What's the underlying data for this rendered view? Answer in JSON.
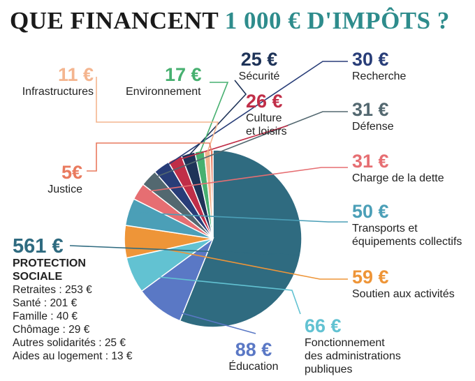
{
  "title": {
    "part1": "QUE FINANCENT",
    "part2": "1 000 € D'IMPÔTS ?"
  },
  "chart_data": {
    "type": "pie",
    "total": 1000,
    "unit": "€",
    "slices": [
      {
        "amount": "561 €",
        "name": "PROTECTION SOCIALE",
        "value": 561,
        "color": "#2f6b80"
      },
      {
        "amount": "88 €",
        "name": "Éducation",
        "value": 88,
        "color": "#5a78c5"
      },
      {
        "amount": "66 €",
        "name": "Fonctionnement des administrations publiques",
        "value": 66,
        "color": "#62c2d2"
      },
      {
        "amount": "59 €",
        "name": "Soutien aux activités",
        "value": 59,
        "color": "#ee9538"
      },
      {
        "amount": "50 €",
        "name": "Transports et équipements collectifs",
        "value": 50,
        "color": "#4b9fb7"
      },
      {
        "amount": "31 €",
        "name": "Charge de la dette",
        "value": 31,
        "color": "#e66e72"
      },
      {
        "amount": "31 €",
        "name": "Défense",
        "value": 31,
        "color": "#536870"
      },
      {
        "amount": "30 €",
        "name": "Recherche",
        "value": 30,
        "color": "#283d78"
      },
      {
        "amount": "26 €",
        "name": "Culture et loisirs",
        "value": 26,
        "color": "#c02e48"
      },
      {
        "amount": "25 €",
        "name": "Sécurité",
        "value": 25,
        "color": "#1e3358"
      },
      {
        "amount": "17 €",
        "name": "Environnement",
        "value": 17,
        "color": "#47b070"
      },
      {
        "amount": "11 €",
        "name": "Infrastructures",
        "value": 11,
        "color": "#f4b58f"
      },
      {
        "amount": "5€",
        "name": "Justice",
        "value": 5,
        "color": "#e97a5e"
      }
    ],
    "protection_sociale_breakdown": [
      {
        "label": "Retraites",
        "value": 253,
        "text": "253 €"
      },
      {
        "label": "Santé",
        "value": 201,
        "text": "201 €"
      },
      {
        "label": "Famille",
        "value": 40,
        "text": "40 €"
      },
      {
        "label": "Chômage",
        "value": 29,
        "text": "29 €"
      },
      {
        "label": "Autres solidarités",
        "value": 25,
        "text": "25 €"
      },
      {
        "label": "Aides au logement",
        "value": 13,
        "text": "13 €"
      }
    ]
  },
  "labels": {
    "protection_line1": "PROTECTION",
    "protection_line2": "SOCIALE",
    "fonct_line1": "Fonctionnement",
    "fonct_line2": "des administrations",
    "fonct_line3": "publiques",
    "transports_line1": "Transports et",
    "transports_line2": "équipements collectifs",
    "culture_line1": "Culture",
    "culture_line2": "et loisirs"
  }
}
